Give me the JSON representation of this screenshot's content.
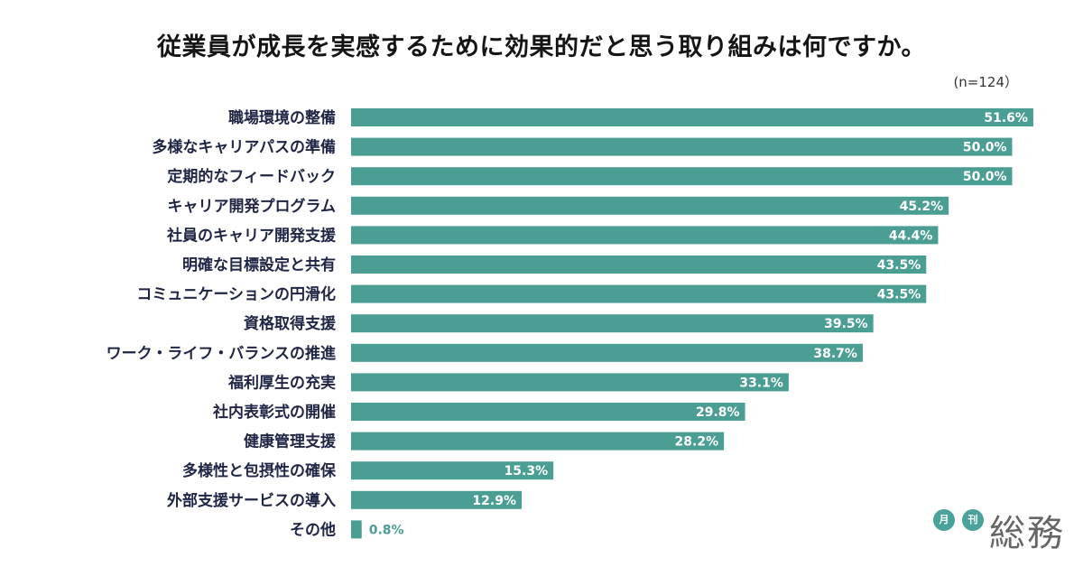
{
  "chart_data": {
    "type": "bar",
    "orientation": "horizontal",
    "title": "従業員が成長を実感するために効果的だと思う取り組みは何ですか。",
    "note": "(n=124）",
    "categories": [
      "職場環境の整備",
      "多様なキャリアパスの準備",
      "定期的なフィードバック",
      "キャリア開発プログラム",
      "社員のキャリア開発支援",
      "明確な目標設定と共有",
      "コミュニケーションの円滑化",
      "資格取得支援",
      "ワーク・ライフ・バランスの推進",
      "福利厚生の充実",
      "社内表彰式の開催",
      "健康管理支援",
      "多様性と包摂性の確保",
      "外部支援サービスの導入",
      "その他"
    ],
    "values": [
      51.6,
      50.0,
      50.0,
      45.2,
      44.4,
      43.5,
      43.5,
      39.5,
      38.7,
      33.1,
      29.8,
      28.2,
      15.3,
      12.9,
      0.8
    ],
    "data_labels": [
      "51.6%",
      "50.0%",
      "50.0%",
      "45.2%",
      "44.4%",
      "43.5%",
      "43.5%",
      "39.5%",
      "38.7%",
      "33.1%",
      "29.8%",
      "28.2%",
      "15.3%",
      "12.9%",
      "0.8%"
    ],
    "unit": "%",
    "bar_color": "#4a9e93",
    "label_color": "#1f2544",
    "grid": false,
    "legend": "none"
  },
  "logo": {
    "badge1": "月",
    "badge2": "刊",
    "name": "総務"
  }
}
